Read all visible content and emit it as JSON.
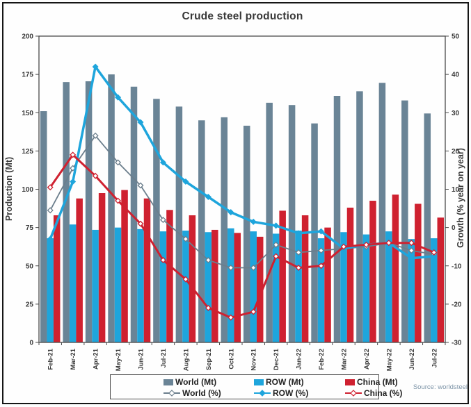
{
  "title": "Crude steel production",
  "source": "Source: worldsteel",
  "y_left": {
    "label": "Production (Mt)",
    "ticks": [
      0,
      25,
      50,
      75,
      100,
      125,
      150,
      175,
      200
    ]
  },
  "y_right": {
    "label": "Growth (% year on year)",
    "ticks": [
      -30,
      -20,
      -10,
      0,
      10,
      20,
      30,
      40,
      50
    ]
  },
  "colors": {
    "world": "#6a8496",
    "row": "#1ea5dc",
    "china": "#cf2130",
    "world_line": "#6b7e8c",
    "axis": "#4a4a4a",
    "tick_text": "#3a3a3a",
    "source_text": "#7e95a8"
  },
  "chart_data": {
    "type": "combo-bar-line",
    "title": "Crude steel production",
    "categories": [
      "Feb-21",
      "Mar-21",
      "Apr-21",
      "May-21",
      "Jun-21",
      "Jul-21",
      "Aug-21",
      "Sep-21",
      "Oct-21",
      "Nov-21",
      "Dec-21",
      "Jan-22",
      "Feb-22",
      "Mar-22",
      "Apr-22",
      "May-22",
      "Jun-22",
      "Jul-22"
    ],
    "ylim_left": [
      0,
      200
    ],
    "ylabel_left": "Production (Mt)",
    "ylim_right": [
      -30,
      50
    ],
    "ylabel_right": "Growth (% year on year)",
    "grid": false,
    "legend_position": "bottom",
    "series": [
      {
        "name": "World (Mt)",
        "kind": "bar",
        "axis": "left",
        "color": "#6a8496",
        "values": [
          151,
          170,
          170.5,
          175,
          167,
          159,
          154,
          145,
          147,
          141.5,
          156.5,
          155,
          143,
          161,
          164,
          169.5,
          158,
          149.5
        ]
      },
      {
        "name": "ROW (Mt)",
        "kind": "bar",
        "axis": "left",
        "color": "#1ea5dc",
        "values": [
          68,
          77,
          73.5,
          75,
          74,
          72.5,
          73,
          72,
          74.5,
          72.5,
          71,
          73,
          68,
          72,
          70.5,
          72.5,
          67.5,
          68
        ]
      },
      {
        "name": "China (Mt)",
        "kind": "bar",
        "axis": "left",
        "color": "#cf2130",
        "values": [
          83,
          94,
          97.5,
          99.5,
          94,
          86.5,
          83,
          73.5,
          71.5,
          69,
          86,
          83,
          75,
          88,
          92.5,
          96.5,
          90.5,
          81.5
        ]
      },
      {
        "name": "World (%)",
        "kind": "line",
        "axis": "right",
        "color": "#6b7e8c",
        "width": 1.8,
        "marker": "open-diamond",
        "values": [
          4.5,
          15.5,
          24,
          17,
          11,
          2,
          -3,
          -8.5,
          -10.5,
          -10.5,
          -4.5,
          -6.5,
          -6,
          -5.5,
          -5,
          -4,
          -6,
          -7
        ]
      },
      {
        "name": "ROW (%)",
        "kind": "line",
        "axis": "right",
        "color": "#1ea5dc",
        "width": 3.5,
        "marker": "diamond",
        "values": [
          -3,
          12,
          42,
          34,
          27.5,
          17,
          12,
          8,
          4,
          1.5,
          0.5,
          -1.5,
          -1,
          -5.5,
          -4.5,
          -4,
          -8,
          -7.5
        ]
      },
      {
        "name": "China (%)",
        "kind": "line",
        "axis": "right",
        "color": "#cf2130",
        "width": 3,
        "marker": "open-diamond",
        "values": [
          10.5,
          19,
          13.5,
          7,
          1,
          -8.5,
          -13.5,
          -21,
          -23.5,
          -22,
          -7.5,
          -10.5,
          -10,
          -5,
          -4.5,
          -4,
          -4,
          -6.5
        ]
      }
    ]
  }
}
